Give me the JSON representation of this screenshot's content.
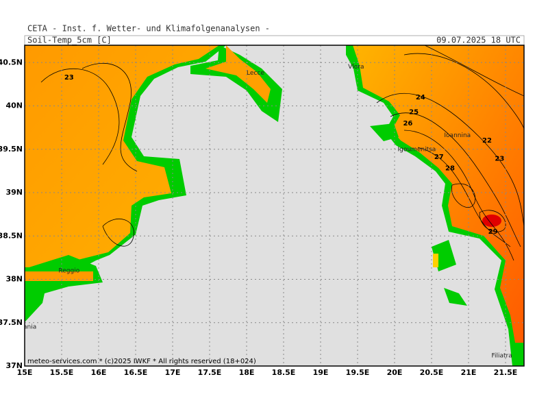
{
  "header": {
    "title": "CETA - Inst. f. Wetter- und Klimafolgenanalysen -",
    "variable": "Soil-Temp_5cm [C]",
    "datetime": "09.07.2025 18 UTC"
  },
  "map": {
    "lon_range": [
      15,
      21.75
    ],
    "lat_range": [
      37,
      40.7
    ],
    "lon_ticks": [
      {
        "value": 15,
        "label": "15E"
      },
      {
        "value": 15.5,
        "label": "15.5E"
      },
      {
        "value": 16,
        "label": "16E"
      },
      {
        "value": 16.5,
        "label": "16.5E"
      },
      {
        "value": 17,
        "label": "17E"
      },
      {
        "value": 17.5,
        "label": "17.5E"
      },
      {
        "value": 18,
        "label": "18E"
      },
      {
        "value": 18.5,
        "label": "18.5E"
      },
      {
        "value": 19,
        "label": "19E"
      },
      {
        "value": 19.5,
        "label": "19.5E"
      },
      {
        "value": 20,
        "label": "20E"
      },
      {
        "value": 20.5,
        "label": "20.5E"
      },
      {
        "value": 21,
        "label": "21E"
      },
      {
        "value": 21.5,
        "label": "21.5E"
      }
    ],
    "lat_ticks": [
      {
        "value": 37,
        "label": "37N"
      },
      {
        "value": 37.5,
        "label": "37.5N"
      },
      {
        "value": 38,
        "label": "38N"
      },
      {
        "value": 38.5,
        "label": "38.5N"
      },
      {
        "value": 39,
        "label": "39N"
      },
      {
        "value": 39.5,
        "label": "39.5N"
      },
      {
        "value": 40,
        "label": "40N"
      },
      {
        "value": 40.5,
        "label": "40.5N"
      }
    ],
    "contour_labels": [
      {
        "label": "23",
        "lon": 15.6,
        "lat": 40.33
      },
      {
        "label": "24",
        "lon": 20.35,
        "lat": 40.1
      },
      {
        "label": "25",
        "lon": 20.26,
        "lat": 39.93
      },
      {
        "label": "26",
        "lon": 20.18,
        "lat": 39.8
      },
      {
        "label": "27",
        "lon": 20.6,
        "lat": 39.41
      },
      {
        "label": "28",
        "lon": 20.75,
        "lat": 39.28
      },
      {
        "label": "22",
        "lon": 21.25,
        "lat": 39.6
      },
      {
        "label": "23",
        "lon": 21.42,
        "lat": 39.39
      },
      {
        "label": "29",
        "lon": 21.33,
        "lat": 38.55
      }
    ],
    "places": [
      {
        "name": "Lecce",
        "lon": 18.12,
        "lat": 40.38
      },
      {
        "name": "Vlora",
        "lon": 19.48,
        "lat": 40.45
      },
      {
        "name": "Igoumenitsa",
        "lon": 20.3,
        "lat": 39.5
      },
      {
        "name": "Ioannina",
        "lon": 20.85,
        "lat": 39.66
      },
      {
        "name": "Reggio",
        "lon": 15.6,
        "lat": 38.1
      },
      {
        "name": "Catania",
        "lon": 15.0,
        "lat": 37.45
      },
      {
        "name": "Filiatra",
        "lon": 21.45,
        "lat": 37.12
      }
    ]
  },
  "footer": "meteo-services.com * (c)2025 IWKF * All rights reserved (18+024)"
}
